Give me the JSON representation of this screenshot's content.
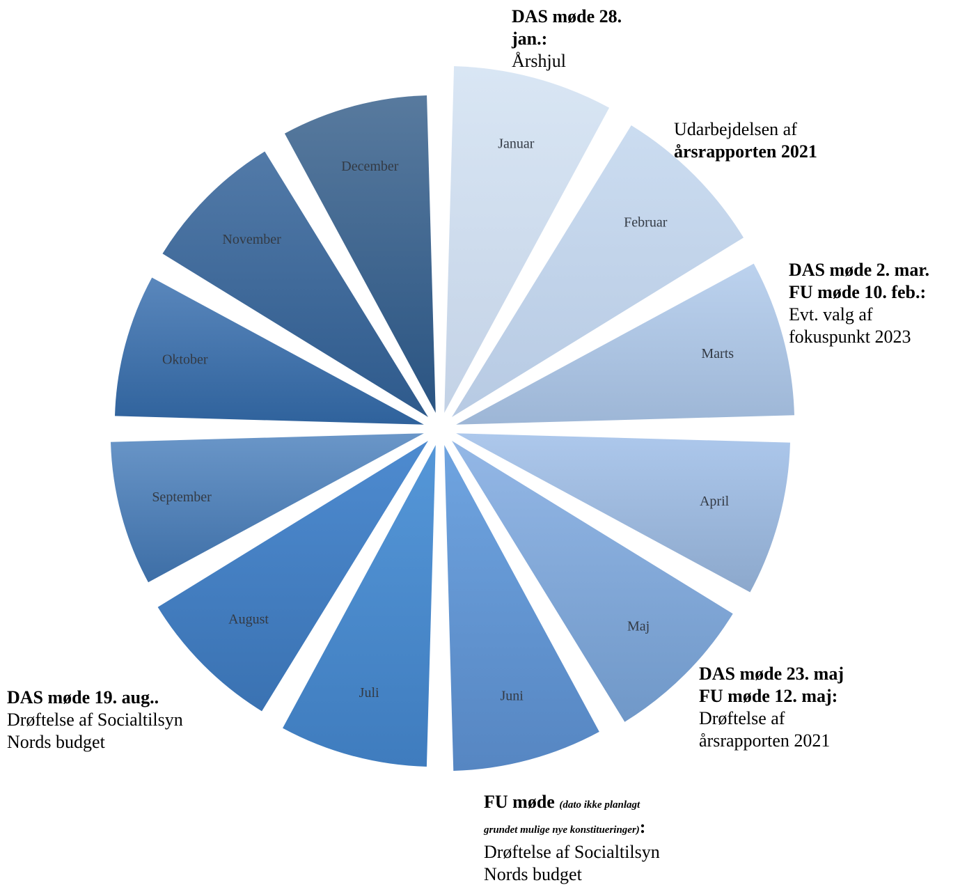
{
  "wheel": {
    "months": [
      {
        "label": "Januar",
        "color_top": "#d9e6f4",
        "color_bottom": "#c3d2e6"
      },
      {
        "label": "Februar",
        "color_top": "#cbdcf0",
        "color_bottom": "#b7cae3"
      },
      {
        "label": "Marts",
        "color_top": "#bcd2ee",
        "color_bottom": "#9db6d6"
      },
      {
        "label": "April",
        "color_top": "#adc8ec",
        "color_bottom": "#8ca8cc"
      },
      {
        "label": "Maj",
        "color_top": "#93b7e6",
        "color_bottom": "#7098c8"
      },
      {
        "label": "Juni",
        "color_top": "#6fa4e0",
        "color_bottom": "#5686c2"
      },
      {
        "label": "Juli",
        "color_top": "#5597d8",
        "color_bottom": "#3f7cbe"
      },
      {
        "label": "August",
        "color_top": "#4e8bd0",
        "color_bottom": "#3a72b2"
      },
      {
        "label": "September",
        "color_top": "#6a96c8",
        "color_bottom": "#3d6ea6"
      },
      {
        "label": "Oktober",
        "color_top": "#5a87bc",
        "color_bottom": "#2f629c"
      },
      {
        "label": "November",
        "color_top": "#527aa8",
        "color_bottom": "#2e5a8c"
      },
      {
        "label": "December",
        "color_top": "#587a9e",
        "color_bottom": "#2a5482"
      }
    ]
  },
  "notes": {
    "jan": {
      "bold1": "DAS møde 28.",
      "bold2": "jan.:",
      "text": "Årshjul"
    },
    "feb": {
      "line1": "Udarbejdelsen af",
      "bold": "årsrapporten 2021"
    },
    "mar": {
      "bold1": "DAS møde 2. mar.",
      "bold2": "FU møde 10. feb.:",
      "text1": "Evt. valg af",
      "text2": "fokuspunkt 2023"
    },
    "may": {
      "bold1": "DAS møde 23. maj",
      "bold2": "FU møde 12. maj:",
      "text1": "Drøftelse af",
      "text2": "årsrapporten 2021"
    },
    "jun": {
      "bold": "FU møde",
      "small1": "(dato ikke planlagt",
      "small2": "grundet mulige nye konstitueringer)",
      "colon": ":",
      "text1": "Drøftelse af Socialtilsyn",
      "text2": "Nords budget"
    },
    "aug": {
      "bold": "DAS møde 19. aug..",
      "text1": "Drøftelse af Socialtilsyn",
      "text2": "Nords budget"
    }
  }
}
